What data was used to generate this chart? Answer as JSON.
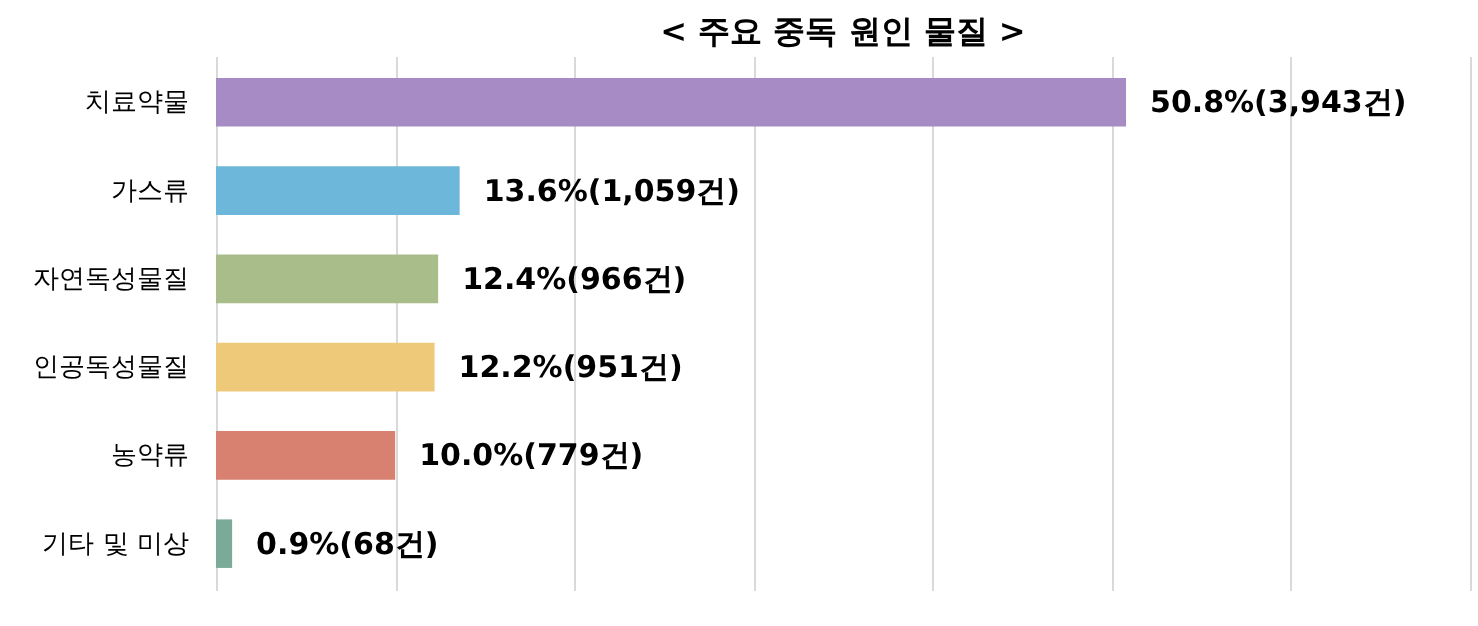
{
  "chart_data": {
    "type": "bar",
    "orientation": "horizontal",
    "title": "< 주요 중독 원인 물질 >",
    "categories": [
      "치료약물",
      "가스류",
      "자연독성물질",
      "인공독성물질",
      "농약류",
      "기타 및 미상"
    ],
    "values": [
      50.8,
      13.6,
      12.4,
      12.2,
      10.0,
      0.9
    ],
    "colors": [
      "#a68bc4",
      "#6db7da",
      "#a9bd8a",
      "#eec97a",
      "#d98171",
      "#7aab98"
    ],
    "value_labels": [
      "50.8%(3,943건)",
      "13.6%(1,059건)",
      "12.4%(966건)",
      "12.2%(951건)",
      "10.0%(779건)",
      "0.9%(68건)"
    ],
    "xlim": [
      0,
      70
    ],
    "xticks": [
      {
        "value": 0,
        "label": null
      },
      {
        "value": 10,
        "label": null
      },
      {
        "value": 20,
        "label": null
      },
      {
        "value": 30,
        "label": null
      },
      {
        "value": 40,
        "label": null
      },
      {
        "value": 50,
        "label": null
      },
      {
        "value": 60,
        "label": null
      },
      {
        "value": 70,
        "label": null
      }
    ],
    "grid": "x",
    "tick_labels": "y"
  }
}
